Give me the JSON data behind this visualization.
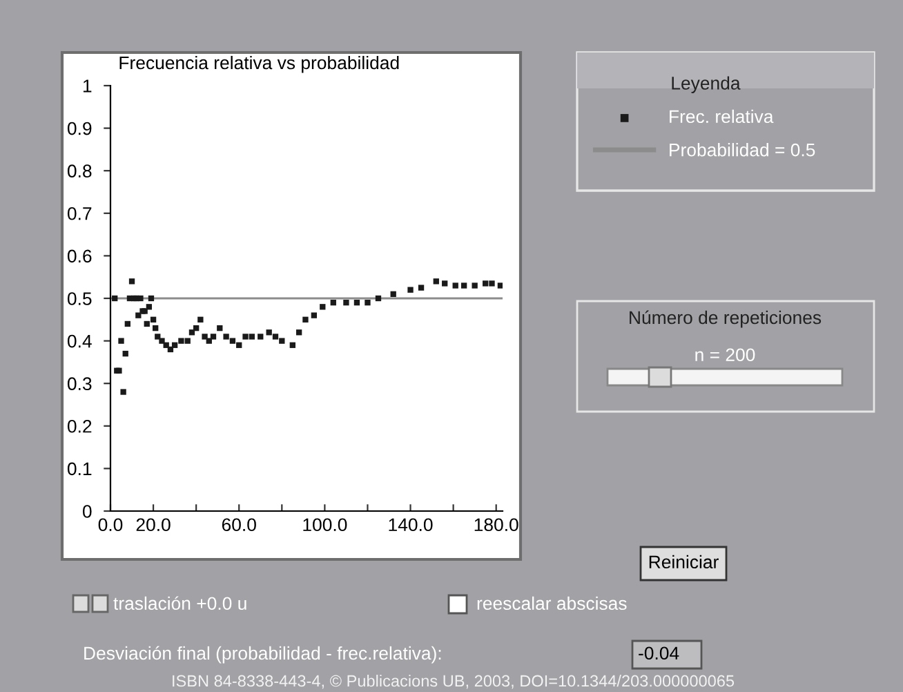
{
  "chart_data": {
    "type": "scatter",
    "title": "Frecuencia relativa vs probabilidad",
    "legend_title": "Leyenda",
    "legend": "right",
    "marker": "square",
    "grid": false,
    "xlim": [
      0,
      183
    ],
    "ylim": [
      0,
      1
    ],
    "xticks": [
      {
        "value": 0,
        "label": "0.0"
      },
      {
        "value": 20,
        "label": "20.0"
      },
      {
        "value": 40,
        "label": null
      },
      {
        "value": 60,
        "label": "60.0"
      },
      {
        "value": 80,
        "label": null
      },
      {
        "value": 100,
        "label": "100.0"
      },
      {
        "value": 120,
        "label": null
      },
      {
        "value": 140,
        "label": "140.0"
      },
      {
        "value": 160,
        "label": null
      },
      {
        "value": 180,
        "label": "180.0"
      }
    ],
    "yticks": [
      0,
      0.1,
      0.2,
      0.3,
      0.4,
      0.5,
      0.6,
      0.7,
      0.8,
      0.9,
      1
    ],
    "series": [
      {
        "name": "Frec. relativa",
        "color": "#1a1a1a",
        "x": [
          2,
          3,
          4,
          5,
          6,
          7,
          8,
          9,
          10,
          11,
          12,
          13,
          14,
          15,
          16,
          17,
          18,
          19,
          20,
          21,
          22,
          24,
          26,
          28,
          30,
          33,
          36,
          38,
          40,
          42,
          44,
          46,
          48,
          51,
          54,
          57,
          60,
          63,
          66,
          70,
          74,
          77,
          80,
          85,
          88,
          91,
          95,
          99,
          104,
          110,
          115,
          120,
          125,
          132,
          140,
          145,
          152,
          156,
          161,
          165,
          170,
          175,
          178,
          182
        ],
        "values": [
          0.5,
          0.33,
          0.33,
          0.4,
          0.28,
          0.37,
          0.44,
          0.5,
          0.54,
          0.5,
          0.5,
          0.46,
          0.5,
          0.47,
          0.47,
          0.44,
          0.48,
          0.5,
          0.45,
          0.43,
          0.41,
          0.4,
          0.39,
          0.38,
          0.39,
          0.4,
          0.4,
          0.42,
          0.43,
          0.45,
          0.41,
          0.4,
          0.41,
          0.43,
          0.41,
          0.4,
          0.39,
          0.41,
          0.41,
          0.41,
          0.42,
          0.41,
          0.4,
          0.39,
          0.42,
          0.45,
          0.46,
          0.48,
          0.49,
          0.49,
          0.49,
          0.49,
          0.5,
          0.51,
          0.52,
          0.525,
          0.54,
          0.535,
          0.53,
          0.53,
          0.53,
          0.535,
          0.535,
          0.53
        ]
      }
    ],
    "ref_lines": [
      {
        "axis": "y",
        "value": 0.5,
        "label": "Probabilidad = 0.5",
        "color": "#8c8c8c"
      }
    ],
    "annotations": [
      "Número de repeticiones",
      "n = 200",
      "Reiniciar",
      "traslación +0.0 u",
      "reescalar abscisas",
      "Desviación final (probabilidad - frec.relativa):",
      "-0.04",
      "ISBN 84-8338-443-4, © Publicacions UB, 2003, DOI=10.1344/203.000000065"
    ]
  }
}
